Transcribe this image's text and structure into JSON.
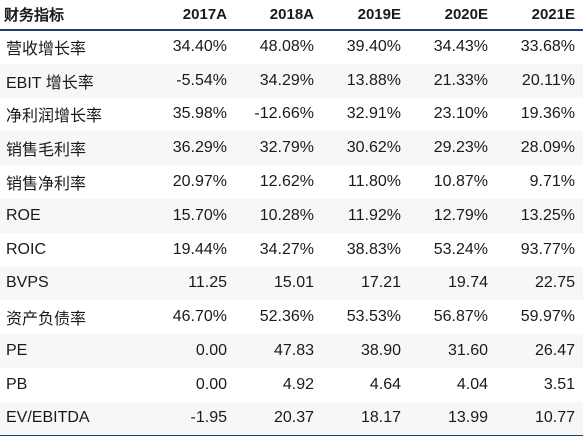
{
  "table": {
    "headers": [
      "财务指标",
      "2017A",
      "2018A",
      "2019E",
      "2020E",
      "2021E"
    ],
    "rows": [
      {
        "label": "营收增长率",
        "values": [
          "34.40%",
          "48.08%",
          "39.40%",
          "34.43%",
          "33.68%"
        ]
      },
      {
        "label": "EBIT 增长率",
        "values": [
          "-5.54%",
          "34.29%",
          "13.88%",
          "21.33%",
          "20.11%"
        ]
      },
      {
        "label": "净利润增长率",
        "values": [
          "35.98%",
          "-12.66%",
          "32.91%",
          "23.10%",
          "19.36%"
        ]
      },
      {
        "label": "销售毛利率",
        "values": [
          "36.29%",
          "32.79%",
          "30.62%",
          "29.23%",
          "28.09%"
        ]
      },
      {
        "label": "销售净利率",
        "values": [
          "20.97%",
          "12.62%",
          "11.80%",
          "10.87%",
          "9.71%"
        ]
      },
      {
        "label": "ROE",
        "values": [
          "15.70%",
          "10.28%",
          "11.92%",
          "12.79%",
          "13.25%"
        ]
      },
      {
        "label": "ROIC",
        "values": [
          "19.44%",
          "34.27%",
          "38.83%",
          "53.24%",
          "93.77%"
        ]
      },
      {
        "label": "BVPS",
        "values": [
          "11.25",
          "15.01",
          "17.21",
          "19.74",
          "22.75"
        ]
      },
      {
        "label": "资产负债率",
        "values": [
          "46.70%",
          "52.36%",
          "53.53%",
          "56.87%",
          "59.97%"
        ]
      },
      {
        "label": "PE",
        "values": [
          "0.00",
          "47.83",
          "38.90",
          "31.60",
          "26.47"
        ]
      },
      {
        "label": "PB",
        "values": [
          "0.00",
          "4.92",
          "4.64",
          "4.04",
          "3.51"
        ]
      },
      {
        "label": "EV/EBITDA",
        "values": [
          "-1.95",
          "20.37",
          "18.17",
          "13.99",
          "10.77"
        ]
      }
    ]
  },
  "colors": {
    "header_rule": "#1f3d7a",
    "text": "#1a1a1a"
  }
}
